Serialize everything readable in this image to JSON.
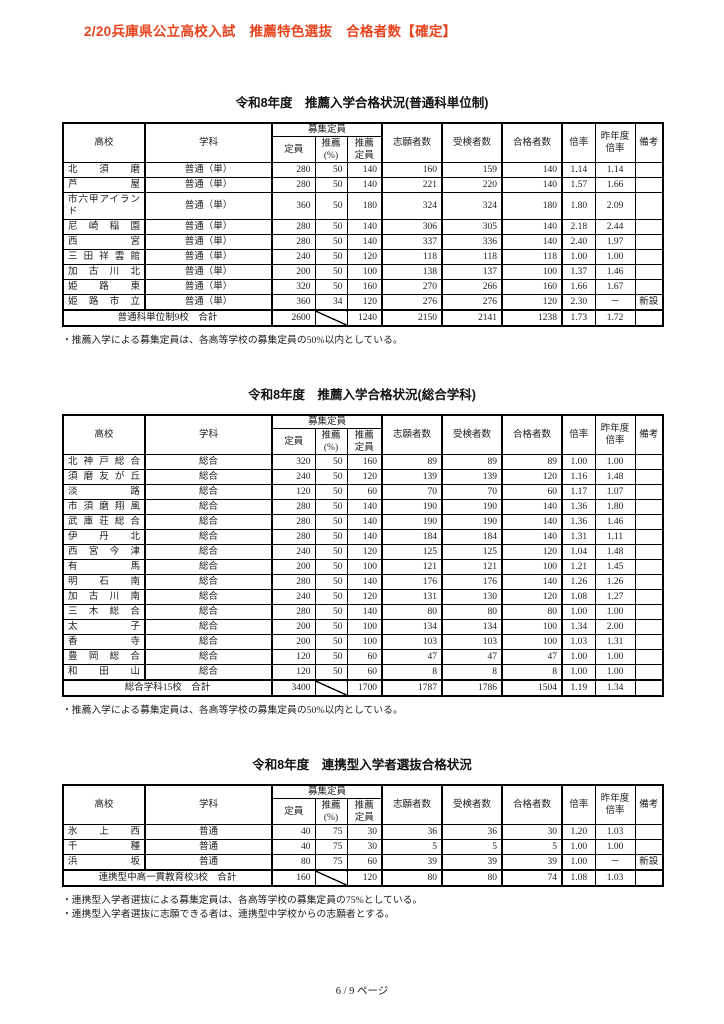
{
  "page": {
    "header": "2/20兵庫県公立高校入試　推薦特色選抜　合格者数【確定】",
    "footer": "6 / 9 ページ",
    "accent_color": "#e8441f"
  },
  "headers": {
    "school": "高校",
    "dept": "学科",
    "recruit_group": "募集定員",
    "capacity": "定員",
    "rec_pct": "推薦\n(%)",
    "rec_cap": "推薦\n定員",
    "applicants": "志願者数",
    "examinees": "受検者数",
    "accepted": "合格者数",
    "ratio": "倍率",
    "prev_ratio": "昨年度\n倍率",
    "remarks": "備考"
  },
  "tables": [
    {
      "title": "令和8年度　推薦入学合格状況(普通科単位制)",
      "rows": [
        {
          "school": "北須磨",
          "dept": "普通（単）",
          "capacity": "280",
          "rec_pct": "50",
          "rec_cap": "140",
          "applicants": "160",
          "examinees": "159",
          "accepted": "140",
          "ratio": "1.14",
          "prev_ratio": "1.14",
          "remarks": ""
        },
        {
          "school": "芦屋",
          "dept": "普通（単）",
          "capacity": "280",
          "rec_pct": "50",
          "rec_cap": "140",
          "applicants": "221",
          "examinees": "220",
          "accepted": "140",
          "ratio": "1.57",
          "prev_ratio": "1.66",
          "remarks": ""
        },
        {
          "school": "市六甲アイランド",
          "dept": "普通（単）",
          "capacity": "360",
          "rec_pct": "50",
          "rec_cap": "180",
          "applicants": "324",
          "examinees": "324",
          "accepted": "180",
          "ratio": "1.80",
          "prev_ratio": "2.09",
          "remarks": ""
        },
        {
          "school": "尼崎稲園",
          "dept": "普通（単）",
          "capacity": "280",
          "rec_pct": "50",
          "rec_cap": "140",
          "applicants": "306",
          "examinees": "305",
          "accepted": "140",
          "ratio": "2.18",
          "prev_ratio": "2.44",
          "remarks": ""
        },
        {
          "school": "西宮",
          "dept": "普通（単）",
          "capacity": "280",
          "rec_pct": "50",
          "rec_cap": "140",
          "applicants": "337",
          "examinees": "336",
          "accepted": "140",
          "ratio": "2.40",
          "prev_ratio": "1.97",
          "remarks": ""
        },
        {
          "school": "三田祥雲館",
          "dept": "普通（単）",
          "capacity": "240",
          "rec_pct": "50",
          "rec_cap": "120",
          "applicants": "118",
          "examinees": "118",
          "accepted": "118",
          "ratio": "1.00",
          "prev_ratio": "1.00",
          "remarks": ""
        },
        {
          "school": "加古川北",
          "dept": "普通（単）",
          "capacity": "200",
          "rec_pct": "50",
          "rec_cap": "100",
          "applicants": "138",
          "examinees": "137",
          "accepted": "100",
          "ratio": "1.37",
          "prev_ratio": "1.46",
          "remarks": ""
        },
        {
          "school": "姫路東",
          "dept": "普通（単）",
          "capacity": "320",
          "rec_pct": "50",
          "rec_cap": "160",
          "applicants": "270",
          "examinees": "266",
          "accepted": "160",
          "ratio": "1.66",
          "prev_ratio": "1.67",
          "remarks": ""
        },
        {
          "school": "姫路市立",
          "dept": "普通（単）",
          "capacity": "360",
          "rec_pct": "34",
          "rec_cap": "120",
          "applicants": "276",
          "examinees": "276",
          "accepted": "120",
          "ratio": "2.30",
          "prev_ratio": "－",
          "remarks": "新設"
        }
      ],
      "total": {
        "label": "普通科単位制9校　合計",
        "capacity": "2600",
        "rec_cap": "1240",
        "applicants": "2150",
        "examinees": "2141",
        "accepted": "1238",
        "ratio": "1.73",
        "prev_ratio": "1.72",
        "remarks": ""
      },
      "notes": [
        "・推薦入学による募集定員は、各高等学校の募集定員の50%以内としている。"
      ]
    },
    {
      "title": "令和8年度　推薦入学合格状況(総合学科)",
      "rows": [
        {
          "school": "北神戸総合",
          "dept": "総合",
          "capacity": "320",
          "rec_pct": "50",
          "rec_cap": "160",
          "applicants": "89",
          "examinees": "89",
          "accepted": "89",
          "ratio": "1.00",
          "prev_ratio": "1.00",
          "remarks": ""
        },
        {
          "school": "須磨友が丘",
          "dept": "総合",
          "capacity": "240",
          "rec_pct": "50",
          "rec_cap": "120",
          "applicants": "139",
          "examinees": "139",
          "accepted": "120",
          "ratio": "1.16",
          "prev_ratio": "1.48",
          "remarks": ""
        },
        {
          "school": "淡路",
          "dept": "総合",
          "capacity": "120",
          "rec_pct": "50",
          "rec_cap": "60",
          "applicants": "70",
          "examinees": "70",
          "accepted": "60",
          "ratio": "1.17",
          "prev_ratio": "1.07",
          "remarks": ""
        },
        {
          "school": "市須磨翔風",
          "dept": "総合",
          "capacity": "280",
          "rec_pct": "50",
          "rec_cap": "140",
          "applicants": "190",
          "examinees": "190",
          "accepted": "140",
          "ratio": "1.36",
          "prev_ratio": "1.80",
          "remarks": ""
        },
        {
          "school": "武庫荘総合",
          "dept": "総合",
          "capacity": "280",
          "rec_pct": "50",
          "rec_cap": "140",
          "applicants": "190",
          "examinees": "190",
          "accepted": "140",
          "ratio": "1.36",
          "prev_ratio": "1.46",
          "remarks": ""
        },
        {
          "school": "伊丹北",
          "dept": "総合",
          "capacity": "280",
          "rec_pct": "50",
          "rec_cap": "140",
          "applicants": "184",
          "examinees": "184",
          "accepted": "140",
          "ratio": "1.31",
          "prev_ratio": "1.11",
          "remarks": ""
        },
        {
          "school": "西宮今津",
          "dept": "総合",
          "capacity": "240",
          "rec_pct": "50",
          "rec_cap": "120",
          "applicants": "125",
          "examinees": "125",
          "accepted": "120",
          "ratio": "1.04",
          "prev_ratio": "1.48",
          "remarks": ""
        },
        {
          "school": "有馬",
          "dept": "総合",
          "capacity": "200",
          "rec_pct": "50",
          "rec_cap": "100",
          "applicants": "121",
          "examinees": "121",
          "accepted": "100",
          "ratio": "1.21",
          "prev_ratio": "1.45",
          "remarks": ""
        },
        {
          "school": "明石南",
          "dept": "総合",
          "capacity": "280",
          "rec_pct": "50",
          "rec_cap": "140",
          "applicants": "176",
          "examinees": "176",
          "accepted": "140",
          "ratio": "1.26",
          "prev_ratio": "1.26",
          "remarks": ""
        },
        {
          "school": "加古川南",
          "dept": "総合",
          "capacity": "240",
          "rec_pct": "50",
          "rec_cap": "120",
          "applicants": "131",
          "examinees": "130",
          "accepted": "120",
          "ratio": "1.08",
          "prev_ratio": "1.27",
          "remarks": ""
        },
        {
          "school": "三木総合",
          "dept": "総合",
          "capacity": "280",
          "rec_pct": "50",
          "rec_cap": "140",
          "applicants": "80",
          "examinees": "80",
          "accepted": "80",
          "ratio": "1.00",
          "prev_ratio": "1.00",
          "remarks": ""
        },
        {
          "school": "太子",
          "dept": "総合",
          "capacity": "200",
          "rec_pct": "50",
          "rec_cap": "100",
          "applicants": "134",
          "examinees": "134",
          "accepted": "100",
          "ratio": "1.34",
          "prev_ratio": "2.00",
          "remarks": ""
        },
        {
          "school": "香寺",
          "dept": "総合",
          "capacity": "200",
          "rec_pct": "50",
          "rec_cap": "100",
          "applicants": "103",
          "examinees": "103",
          "accepted": "100",
          "ratio": "1.03",
          "prev_ratio": "1.31",
          "remarks": ""
        },
        {
          "school": "豊岡総合",
          "dept": "総合",
          "capacity": "120",
          "rec_pct": "50",
          "rec_cap": "60",
          "applicants": "47",
          "examinees": "47",
          "accepted": "47",
          "ratio": "1.00",
          "prev_ratio": "1.00",
          "remarks": ""
        },
        {
          "school": "和田山",
          "dept": "総合",
          "capacity": "120",
          "rec_pct": "50",
          "rec_cap": "60",
          "applicants": "8",
          "examinees": "8",
          "accepted": "8",
          "ratio": "1.00",
          "prev_ratio": "1.00",
          "remarks": ""
        }
      ],
      "total": {
        "label": "総合学科15校　合計",
        "capacity": "3400",
        "rec_cap": "1700",
        "applicants": "1787",
        "examinees": "1786",
        "accepted": "1504",
        "ratio": "1.19",
        "prev_ratio": "1.34",
        "remarks": ""
      },
      "notes": [
        "・推薦入学による募集定員は、各高等学校の募集定員の50%以内としている。"
      ]
    },
    {
      "title": "令和8年度　連携型入学者選抜合格状況",
      "rows": [
        {
          "school": "氷上西",
          "dept": "普通",
          "capacity": "40",
          "rec_pct": "75",
          "rec_cap": "30",
          "applicants": "36",
          "examinees": "36",
          "accepted": "30",
          "ratio": "1.20",
          "prev_ratio": "1.03",
          "remarks": ""
        },
        {
          "school": "千種",
          "dept": "普通",
          "capacity": "40",
          "rec_pct": "75",
          "rec_cap": "30",
          "applicants": "5",
          "examinees": "5",
          "accepted": "5",
          "ratio": "1.00",
          "prev_ratio": "1.00",
          "remarks": ""
        },
        {
          "school": "浜坂",
          "dept": "普通",
          "capacity": "80",
          "rec_pct": "75",
          "rec_cap": "60",
          "applicants": "39",
          "examinees": "39",
          "accepted": "39",
          "ratio": "1.00",
          "prev_ratio": "－",
          "remarks": "新設"
        }
      ],
      "total": {
        "label": "連携型中高一貫教育校3校　合計",
        "capacity": "160",
        "rec_cap": "120",
        "applicants": "80",
        "examinees": "80",
        "accepted": "74",
        "ratio": "1.08",
        "prev_ratio": "1.03",
        "remarks": ""
      },
      "notes": [
        "・連携型入学者選抜による募集定員は、各高等学校の募集定員の75%としている。",
        "・連携型入学者選抜に志願できる者は、連携型中学校からの志願者とする。"
      ]
    }
  ]
}
